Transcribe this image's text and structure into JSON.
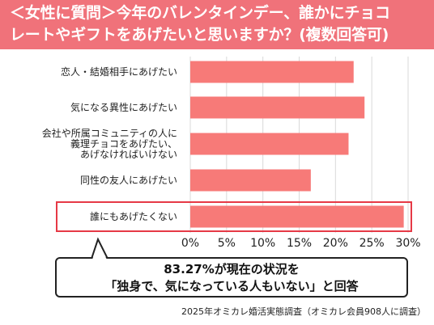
{
  "title": {
    "line1": "＜女性に質問＞今年のバレンタインデー、誰かにチョコ",
    "line2": "レートやギフトをあげたいと思いますか？(複数回答可)"
  },
  "callout": {
    "line1": "83.27%が現在の状況を",
    "line2": "「独身で、気になっている人もいない」と回答"
  },
  "source": "2025年オミカレ婚活実態調査（オミカレ会員908人に調査）",
  "colors": {
    "bar": "#f77a78",
    "highlight": "#e63946",
    "title_bg": "#f0727a",
    "grid": "#d9d9d9"
  },
  "chart_data": {
    "type": "bar",
    "orientation": "horizontal",
    "categories": [
      [
        "恋人・結婚相手にあげたい"
      ],
      [
        "気になる異性にあげたい"
      ],
      [
        "会社や所属コミュニティの人に",
        "義理チョコをあげたい、",
        "あげなければいけない"
      ],
      [
        "同性の友人にあげたい"
      ],
      [
        "誰にもあげたくない"
      ]
    ],
    "values": [
      22.5,
      24.0,
      21.8,
      16.6,
      29.4
    ],
    "highlighted_category_index": 4,
    "xlim": [
      0,
      30
    ],
    "xticks": [
      "0%",
      "5%",
      "10%",
      "15%",
      "20%",
      "25%",
      "30%"
    ],
    "grid": true
  }
}
